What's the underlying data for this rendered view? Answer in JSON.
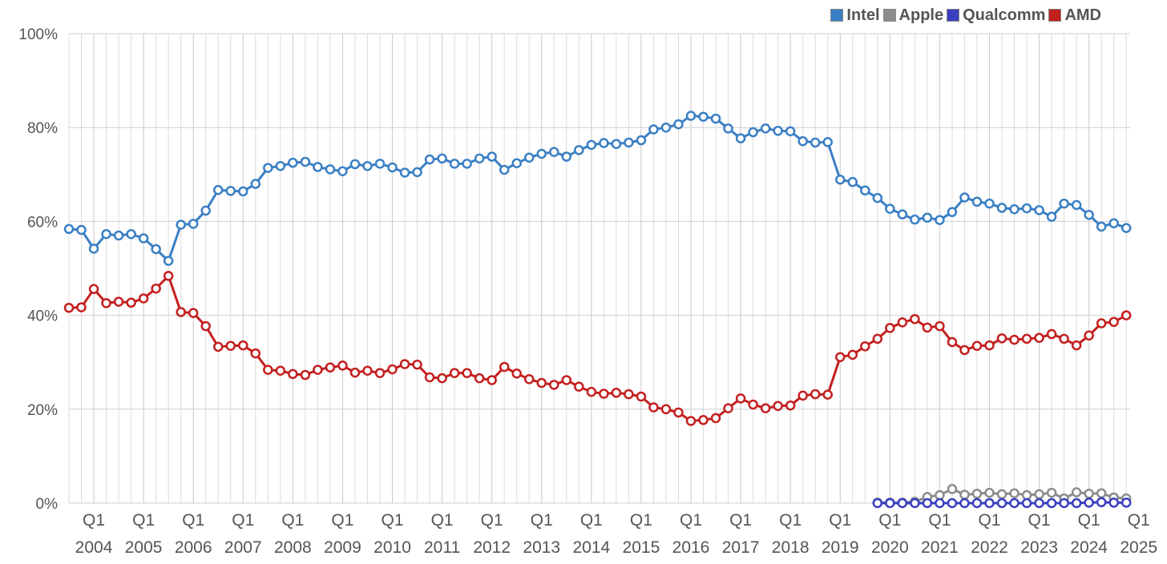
{
  "chart_data": {
    "type": "line",
    "title": "",
    "xlabel": "",
    "ylabel": "",
    "ylim": [
      0,
      100
    ],
    "y_ticks": [
      "0%",
      "20%",
      "40%",
      "60%",
      "80%",
      "100%"
    ],
    "x_tick_top": "Q1",
    "x_years": [
      "2004",
      "2005",
      "2006",
      "2007",
      "2008",
      "2009",
      "2010",
      "2011",
      "2012",
      "2013",
      "2014",
      "2015",
      "2016",
      "2017",
      "2018",
      "2019",
      "2020",
      "2021",
      "2022",
      "2023",
      "2024",
      "2025"
    ],
    "grid": "vertical per quarter, horizontal per 20%",
    "legend_position": "top-right",
    "x_start_quarter": "2003 Q3",
    "series": [
      {
        "name": "Intel",
        "color": "#3a7fc4",
        "start_index": 0,
        "values": [
          58.4,
          58.2,
          54.2,
          57.3,
          57.0,
          57.3,
          56.4,
          54.1,
          51.6,
          59.3,
          59.5,
          62.3,
          66.7,
          66.5,
          66.4,
          68.0,
          71.4,
          71.8,
          72.5,
          72.7,
          71.6,
          71.1,
          70.7,
          72.2,
          71.8,
          72.3,
          71.5,
          70.4,
          70.5,
          73.2,
          73.4,
          72.3,
          72.3,
          73.4,
          73.8,
          71.0,
          72.4,
          73.6,
          74.4,
          74.8,
          73.8,
          75.2,
          76.3,
          76.7,
          76.5,
          76.8,
          77.3,
          79.6,
          80.0,
          80.7,
          82.5,
          82.3,
          81.9,
          79.8,
          77.7,
          79.0,
          79.8,
          79.3,
          79.2,
          77.1,
          76.8,
          76.9,
          68.9,
          68.4,
          66.6,
          65.0,
          62.7,
          61.5,
          60.4,
          60.8,
          60.3,
          62.0,
          65.1,
          64.2,
          63.8,
          62.9,
          62.6,
          62.8,
          62.4,
          61.0,
          63.8,
          63.5,
          61.4,
          58.9,
          59.6,
          58.6
        ]
      },
      {
        "name": "Apple",
        "color": "#8c8c8c",
        "start_index": 65,
        "values": [
          0.1,
          0.1,
          0.1,
          0.3,
          1.3,
          1.7,
          3.0,
          1.8,
          2.0,
          2.2,
          1.9,
          2.1,
          1.7,
          1.9,
          2.2,
          1.0,
          2.3,
          2.0,
          2.1,
          1.2,
          1.0
        ]
      },
      {
        "name": "Qualcomm",
        "color": "#3a3fbf",
        "start_index": 65,
        "values": [
          0,
          0,
          0,
          0,
          0,
          0,
          0,
          0,
          0,
          0,
          0,
          0,
          0,
          0,
          0,
          0,
          0,
          0.1,
          0.2,
          0.1,
          0.1
        ]
      },
      {
        "name": "AMD",
        "color": "#c41f1f",
        "start_index": 0,
        "values": [
          41.6,
          41.7,
          45.6,
          42.6,
          42.9,
          42.7,
          43.6,
          45.7,
          48.4,
          40.7,
          40.5,
          37.7,
          33.3,
          33.5,
          33.6,
          31.9,
          28.4,
          28.2,
          27.5,
          27.3,
          28.4,
          28.9,
          29.3,
          27.8,
          28.2,
          27.7,
          28.5,
          29.6,
          29.5,
          26.8,
          26.6,
          27.7,
          27.7,
          26.6,
          26.2,
          29.0,
          27.6,
          26.4,
          25.6,
          25.2,
          26.2,
          24.8,
          23.7,
          23.3,
          23.5,
          23.2,
          22.7,
          20.4,
          20.0,
          19.3,
          17.5,
          17.7,
          18.1,
          20.2,
          22.3,
          21.0,
          20.2,
          20.7,
          20.8,
          22.9,
          23.2,
          23.1,
          31.1,
          31.6,
          33.4,
          35.0,
          37.3,
          38.5,
          39.2,
          37.4,
          37.7,
          34.3,
          32.6,
          33.5,
          33.6,
          35.1,
          34.8,
          35.0,
          35.2,
          36.0,
          35.0,
          33.6,
          35.7,
          38.3,
          38.6,
          40.0
        ]
      }
    ]
  }
}
